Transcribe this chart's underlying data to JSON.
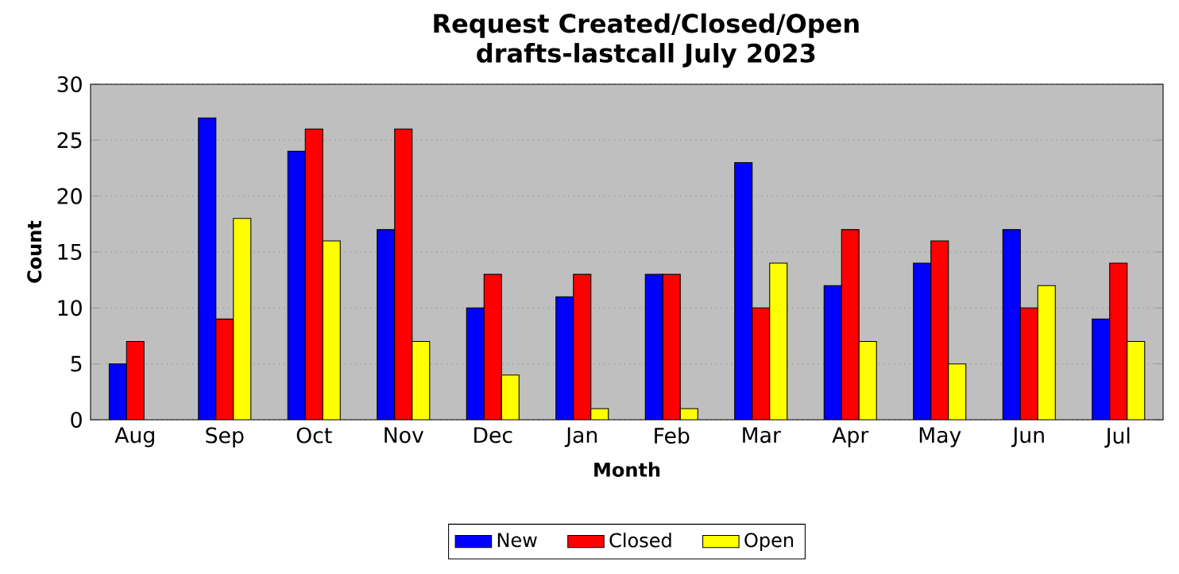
{
  "chart_data": {
    "type": "bar",
    "title": "Request Created/Closed/Open",
    "subtitle": "drafts-lastcall July 2023",
    "xlabel": "Month",
    "ylabel": "Count",
    "categories": [
      "Aug",
      "Sep",
      "Oct",
      "Nov",
      "Dec",
      "Jan",
      "Feb",
      "Mar",
      "Apr",
      "May",
      "Jun",
      "Jul"
    ],
    "series": [
      {
        "name": "New",
        "color": "#0000ff",
        "values": [
          5,
          27,
          24,
          17,
          10,
          11,
          13,
          23,
          12,
          14,
          17,
          9
        ]
      },
      {
        "name": "Closed",
        "color": "#ff0000",
        "values": [
          7,
          9,
          26,
          26,
          13,
          13,
          13,
          10,
          17,
          16,
          10,
          14
        ]
      },
      {
        "name": "Open",
        "color": "#ffff00",
        "values": [
          null,
          18,
          16,
          7,
          4,
          1,
          1,
          14,
          7,
          5,
          12,
          7
        ]
      }
    ],
    "ylim": [
      0,
      30
    ],
    "yticks": [
      0,
      5,
      10,
      15,
      20,
      25,
      30
    ],
    "grid": "y",
    "legend": "bottom"
  }
}
